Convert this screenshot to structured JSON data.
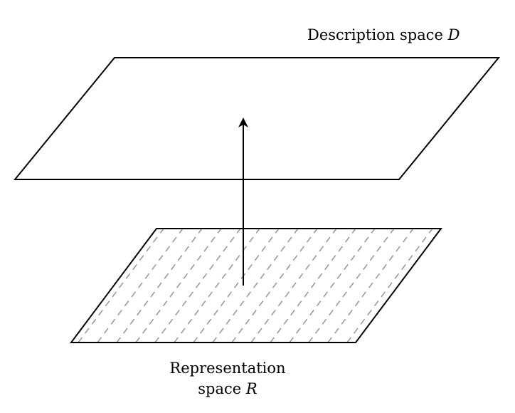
{
  "description_space": {
    "label": "Description space",
    "symbol": "D"
  },
  "representation_space": {
    "label_line1": "Representation",
    "label_line2": "space",
    "symbol": "R"
  },
  "colors": {
    "stroke": "#000000",
    "hatch": "#9a9a9a",
    "background": "#ffffff"
  }
}
